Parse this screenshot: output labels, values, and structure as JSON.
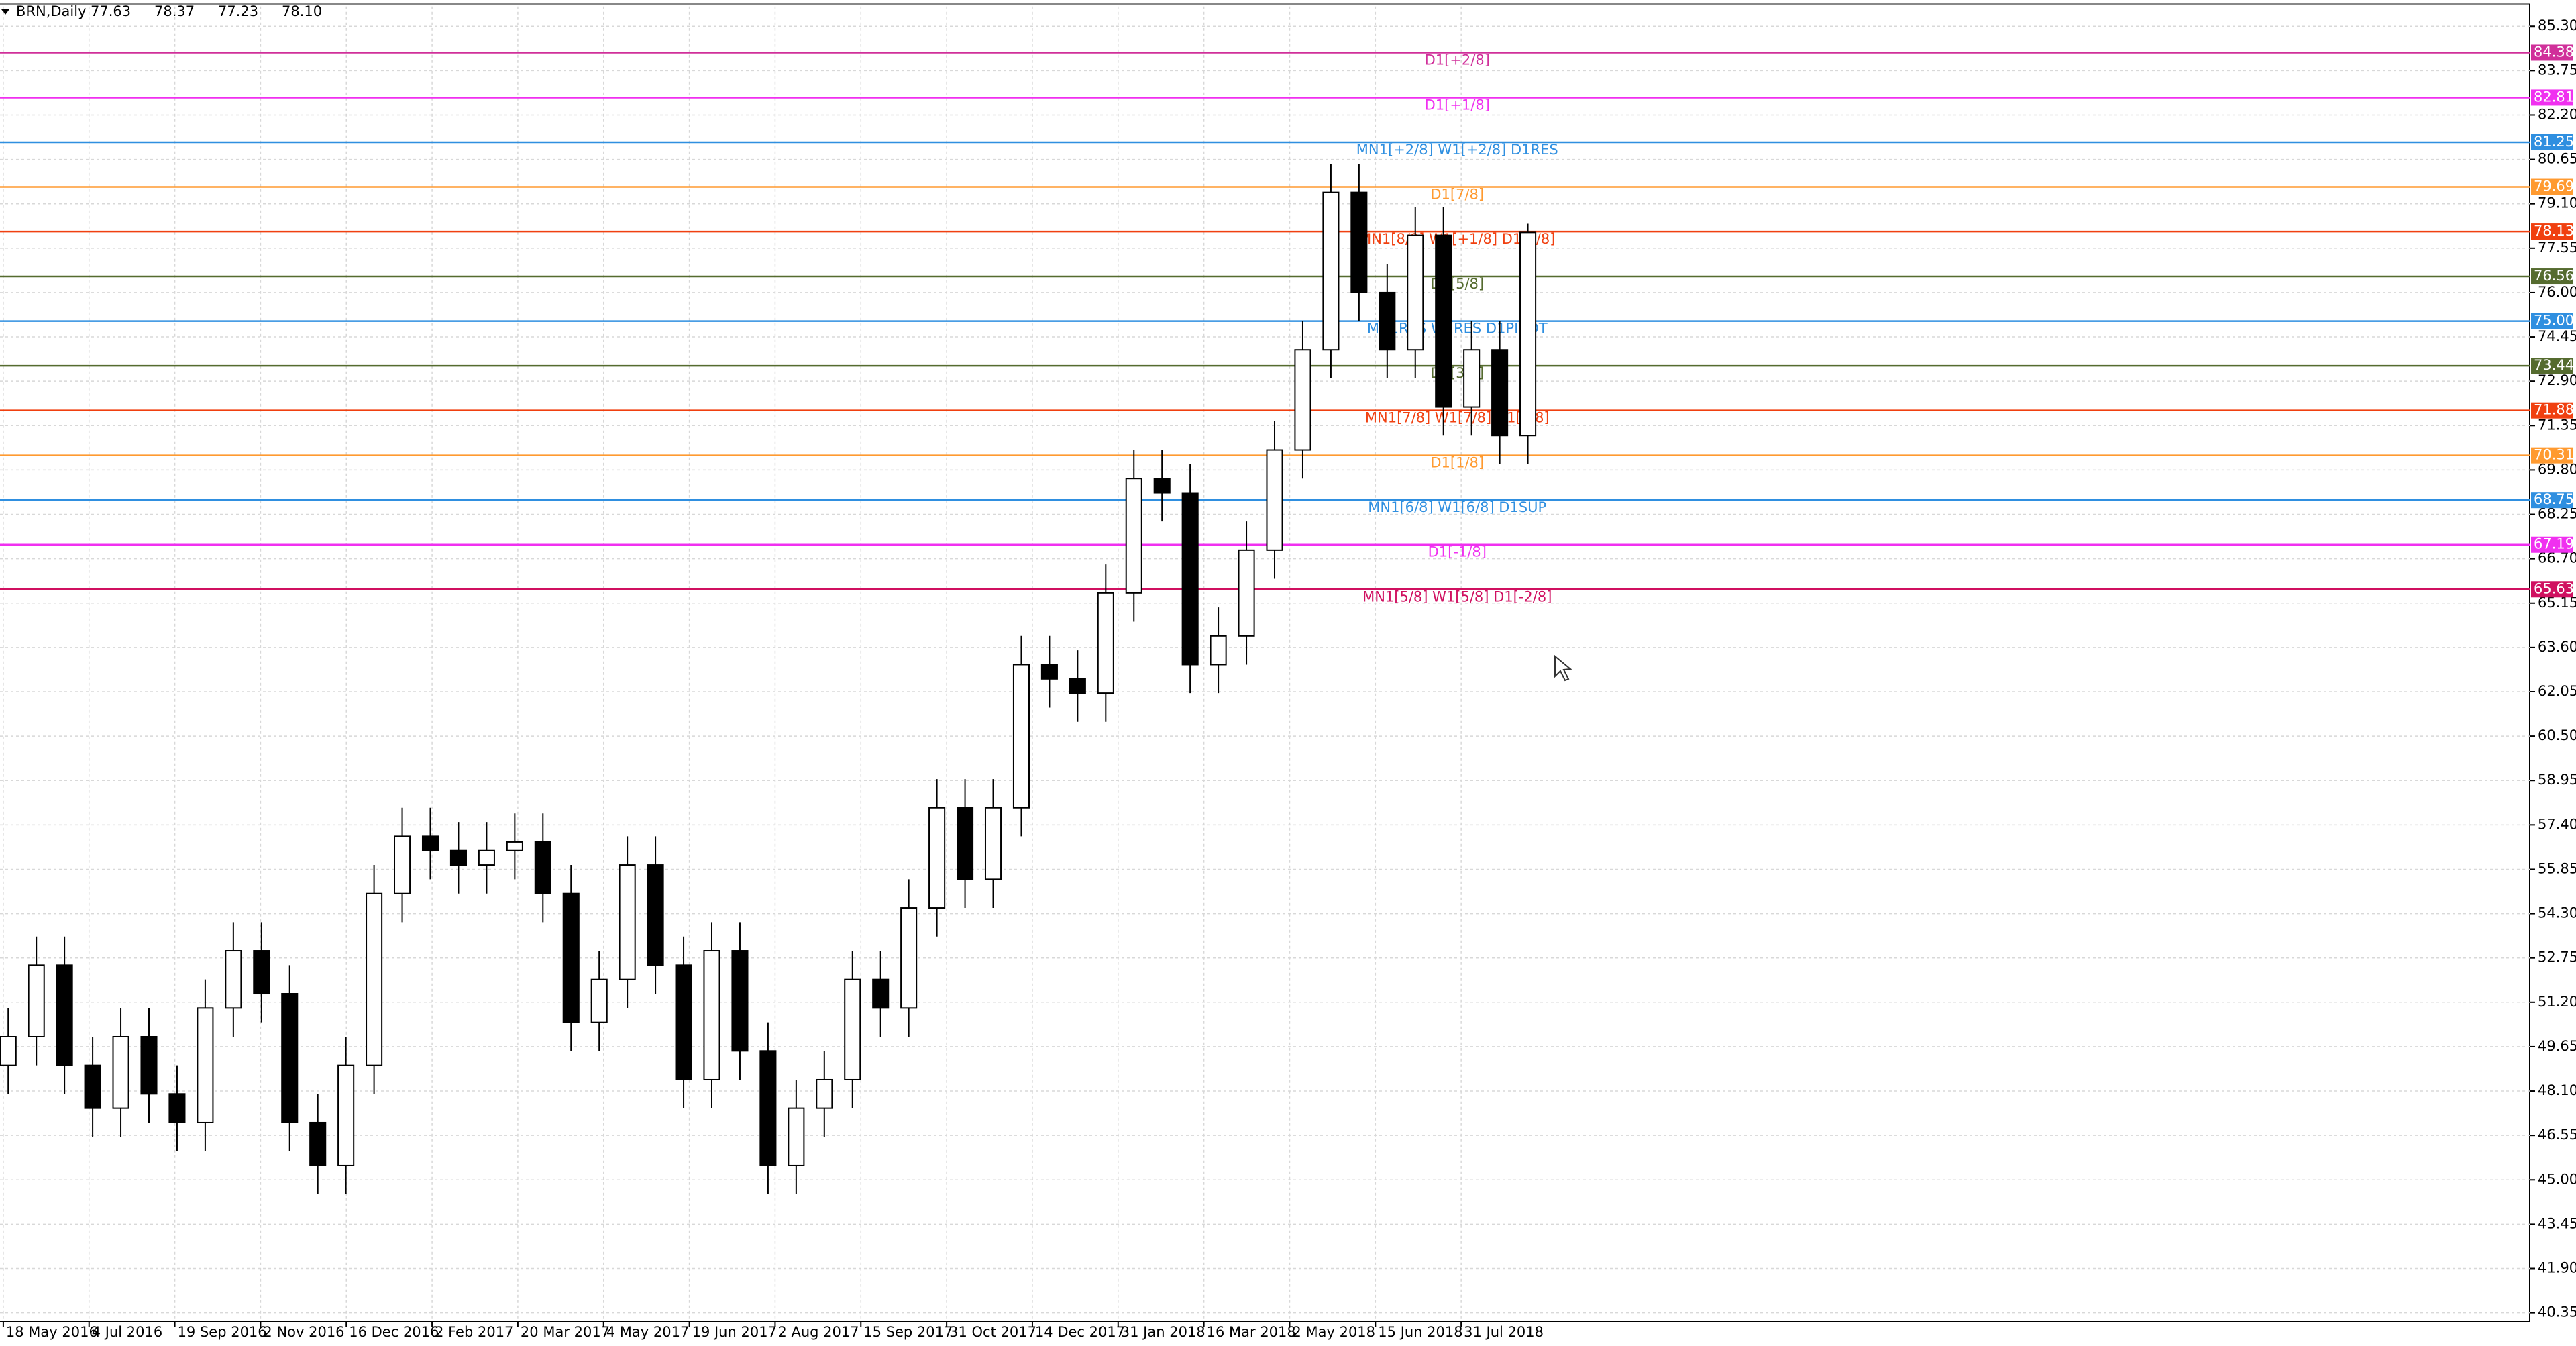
{
  "chart_data": {
    "type": "candlestick",
    "title": "BRN,Daily",
    "ohlc": [
      77.63,
      78.37,
      77.23,
      78.1
    ],
    "ohlc_labels": [
      "77.63",
      "78.37",
      "77.23",
      "78.10"
    ],
    "open": [
      49,
      50,
      52.5,
      49,
      47.5,
      50,
      48,
      47,
      51,
      53,
      51.5,
      47,
      45.5,
      49,
      55,
      57,
      56.5,
      56,
      56.5,
      56.8,
      55,
      50.5,
      52,
      56,
      52.5,
      48.5,
      53,
      49.5,
      45.5,
      47.5,
      48.5,
      52,
      51,
      54.5,
      58,
      55.5,
      58,
      63,
      62.5,
      62,
      65.5,
      69.5,
      69,
      63,
      64,
      67,
      70.5,
      74,
      79.5,
      76,
      74,
      78,
      72,
      74,
      71
    ],
    "high": [
      51,
      53.5,
      53.5,
      50,
      51,
      51,
      49,
      52,
      54,
      54,
      52.5,
      48,
      50,
      56,
      58,
      58,
      57.5,
      57.5,
      57.8,
      57.8,
      56,
      53,
      57,
      57,
      53.5,
      54,
      54,
      50.5,
      48.5,
      49.5,
      53,
      53,
      55.5,
      59,
      59,
      59,
      64,
      64,
      63.5,
      66.5,
      70.5,
      70.5,
      70,
      65,
      68,
      71.5,
      75,
      80.5,
      80.5,
      77,
      79,
      79,
      75,
      75,
      78.4
    ],
    "low": [
      48,
      49,
      48,
      46.5,
      46.5,
      47,
      46,
      46,
      50,
      50.5,
      46,
      44.5,
      44.5,
      48,
      54,
      55.5,
      55,
      55,
      55.5,
      54,
      49.5,
      49.5,
      51,
      51.5,
      47.5,
      47.5,
      48.5,
      44.5,
      44.5,
      46.5,
      47.5,
      50,
      50,
      53.5,
      54.5,
      54.5,
      57,
      61.5,
      61,
      61,
      64.5,
      68,
      62,
      62,
      63,
      66,
      69.5,
      73,
      75,
      73,
      73,
      71,
      71,
      70,
      70
    ],
    "close": [
      50,
      52.5,
      49,
      47.5,
      50,
      48,
      47,
      51,
      53,
      51.5,
      47,
      45.5,
      49,
      55,
      57,
      56.5,
      56,
      56.5,
      56.8,
      55,
      50.5,
      52,
      56,
      52.5,
      48.5,
      53,
      49.5,
      45.5,
      47.5,
      48.5,
      52,
      51,
      54.5,
      58,
      55.5,
      58,
      63,
      62.5,
      62,
      65.5,
      69.5,
      69,
      63,
      64,
      67,
      70.5,
      74,
      79.5,
      76,
      74,
      78,
      72,
      74,
      71,
      78.1
    ],
    "x_labels": [
      "18 May 2016",
      "4 Jul 2016",
      "19 Sep 2016",
      "2 Nov 2016",
      "16 Dec 2016",
      "2 Feb 2017",
      "20 Mar 2017",
      "4 May 2017",
      "19 Jun 2017",
      "2 Aug 2017",
      "15 Sep 2017",
      "31 Oct 2017",
      "14 Dec 2017",
      "31 Jan 2018",
      "16 Mar 2018",
      "2 May 2018",
      "15 Jun 2018",
      "31 Jul 2018"
    ],
    "ylim": [
      40.06,
      85.99
    ],
    "yticks": [
      {
        "value": 85.3,
        "label": "85.30"
      },
      83.75,
      {
        "value": 82.2,
        "label": "82.20"
      },
      80.65,
      {
        "value": 79.1,
        "label": "79.10"
      },
      77.55,
      {
        "value": 76,
        "label": "76.00"
      },
      74.45,
      {
        "value": 72.9,
        "label": "72.90"
      },
      71.35,
      {
        "value": 69.8,
        "label": "69.80"
      },
      68.25,
      {
        "value": 66.7,
        "label": "66.70"
      },
      65.15,
      {
        "value": 63.6,
        "label": "63.60"
      },
      62.05,
      {
        "value": 60.5,
        "label": "60.50"
      },
      58.95,
      {
        "value": 57.4,
        "label": "57.40"
      },
      55.85,
      {
        "value": 54.3,
        "label": "54.30"
      },
      52.75,
      {
        "value": 51.2,
        "label": "51.20"
      },
      49.65,
      {
        "value": 48.1,
        "label": "48.10"
      },
      46.55,
      {
        "value": 45,
        "label": "45.00"
      },
      43.45,
      {
        "value": 41.9,
        "label": "41.90"
      },
      40.35
    ],
    "grid": true,
    "levels": [
      {
        "name": "D1[+2/8]",
        "value": 84.38,
        "color": "#d0309a"
      },
      {
        "name": "D1[+1/8]",
        "value": 82.81,
        "color": "#f030f0"
      },
      {
        "name": "MN1[+2/8] W1[+2/8] D1RES",
        "value": 81.25,
        "color": "#2f8fe0"
      },
      {
        "name": "D1[7/8]",
        "value": 79.69,
        "color": "#ff9a30"
      },
      {
        "name": "MN1[8/8] W1[+1/8] D1[8/8]",
        "value": 78.13,
        "color": "#f04010"
      },
      {
        "name": "D1[5/8]",
        "value": 76.56,
        "color": "#556b2f"
      },
      {
        "name": "MN1RES W1RES D1PIVOT",
        "value": 75,
        "value_label": "75.00",
        "color": "#2f8fe0"
      },
      {
        "name": "D1[3/8]",
        "value": 73.44,
        "color": "#556b2f"
      },
      {
        "name": "MN1[7/8] W1[7/8] D1[2/8]",
        "value": 71.88,
        "color": "#f04010"
      },
      {
        "name": "D1[1/8]",
        "value": 70.31,
        "color": "#ff9a30"
      },
      {
        "name": "MN1[6/8] W1[6/8] D1SUP",
        "value": 68.75,
        "color": "#2f8fe0"
      },
      {
        "name": "D1[-1/8]",
        "value": 67.19,
        "color": "#f030f0"
      },
      {
        "name": "MN1[5/8] W1[5/8] D1[-2/8]",
        "value": 65.63,
        "color": "#d01060"
      }
    ]
  }
}
